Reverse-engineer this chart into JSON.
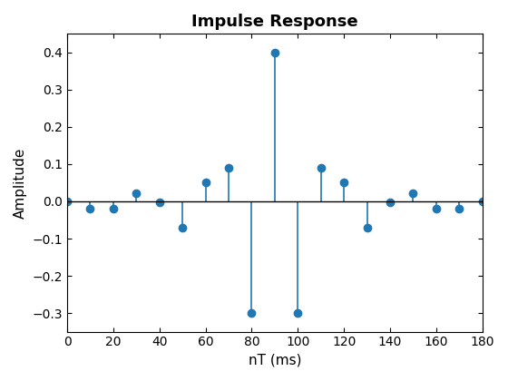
{
  "title": "Impulse Response",
  "xlabel": "nT (ms)",
  "ylabel": "Amplitude",
  "xlim": [
    0,
    180
  ],
  "ylim": [
    -0.35,
    0.45
  ],
  "xticks": [
    0,
    20,
    40,
    60,
    80,
    100,
    120,
    140,
    160,
    180
  ],
  "yticks": [
    -0.3,
    -0.2,
    -0.1,
    0.0,
    0.1,
    0.2,
    0.3,
    0.4
  ],
  "x": [
    0,
    10,
    20,
    30,
    40,
    50,
    60,
    70,
    80,
    90,
    100,
    110,
    120,
    130,
    140,
    150,
    160,
    170,
    180
  ],
  "y": [
    0.0,
    -0.02,
    -0.02,
    0.022,
    -0.002,
    -0.07,
    0.05,
    0.09,
    -0.3,
    0.4,
    -0.3,
    0.09,
    0.05,
    -0.07,
    -0.002,
    0.022,
    -0.02,
    -0.02,
    0.0
  ],
  "stem_color": "#1f77b4",
  "marker_color": "#1f77b4",
  "baseline_color": "black",
  "title_fontsize": 13,
  "label_fontsize": 11
}
